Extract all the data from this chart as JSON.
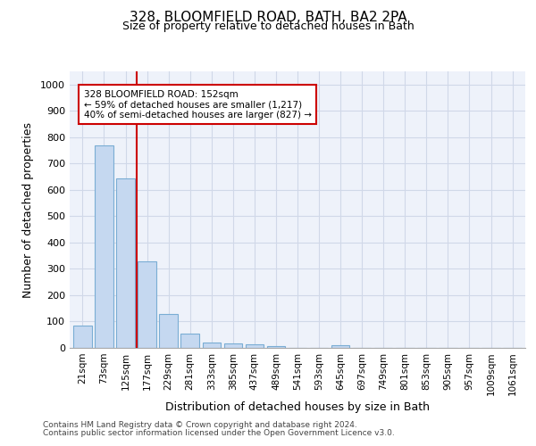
{
  "title_line1": "328, BLOOMFIELD ROAD, BATH, BA2 2PA",
  "title_line2": "Size of property relative to detached houses in Bath",
  "xlabel": "Distribution of detached houses by size in Bath",
  "ylabel": "Number of detached properties",
  "categories": [
    "21sqm",
    "73sqm",
    "125sqm",
    "177sqm",
    "229sqm",
    "281sqm",
    "333sqm",
    "385sqm",
    "437sqm",
    "489sqm",
    "541sqm",
    "593sqm",
    "645sqm",
    "697sqm",
    "749sqm",
    "801sqm",
    "853sqm",
    "905sqm",
    "957sqm",
    "1009sqm",
    "1061sqm"
  ],
  "values": [
    83,
    770,
    645,
    330,
    130,
    55,
    22,
    17,
    12,
    8,
    0,
    0,
    10,
    0,
    0,
    0,
    0,
    0,
    0,
    0,
    0
  ],
  "bar_color": "#c5d8f0",
  "bar_edge_color": "#7aadd4",
  "red_line_x": 2.5,
  "annotation_text": "328 BLOOMFIELD ROAD: 152sqm\n← 59% of detached houses are smaller (1,217)\n40% of semi-detached houses are larger (827) →",
  "annotation_box_color": "#ffffff",
  "annotation_box_edge_color": "#cc0000",
  "ylim": [
    0,
    1050
  ],
  "yticks": [
    0,
    100,
    200,
    300,
    400,
    500,
    600,
    700,
    800,
    900,
    1000
  ],
  "grid_color": "#d0d8e8",
  "background_color": "#eef2fa",
  "footer_line1": "Contains HM Land Registry data © Crown copyright and database right 2024.",
  "footer_line2": "Contains public sector information licensed under the Open Government Licence v3.0.",
  "red_line_color": "#cc0000",
  "fig_width": 6.0,
  "fig_height": 5.0,
  "fig_dpi": 100
}
